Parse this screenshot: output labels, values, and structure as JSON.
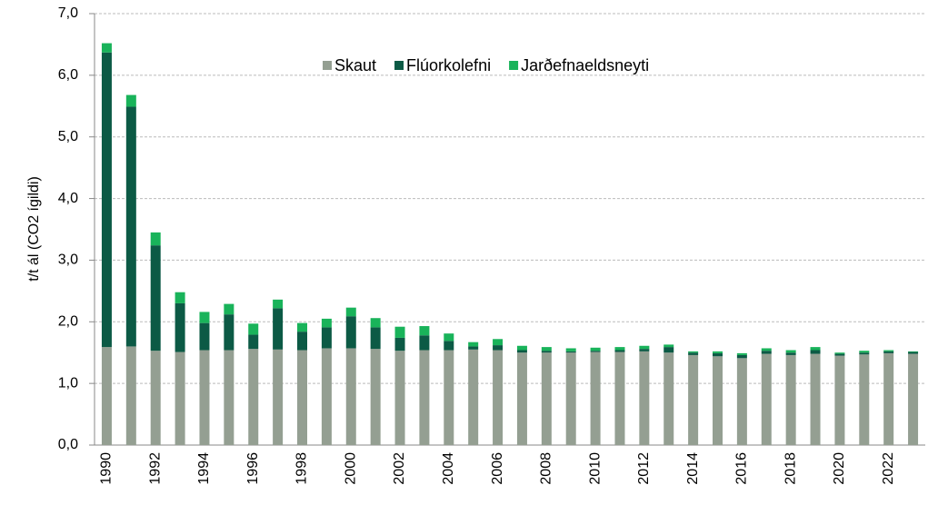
{
  "chart_data": {
    "type": "stacked_bar",
    "y_label": "t/t ál (CO2 ígildi)",
    "categories": [
      "1990",
      null,
      "1992",
      null,
      "1994",
      null,
      "1996",
      null,
      "1998",
      null,
      "2000",
      null,
      "2002",
      null,
      "2004",
      null,
      "2006",
      null,
      "2008",
      null,
      "2010",
      null,
      "2012",
      null,
      "2014",
      null,
      "2016",
      null,
      "2018",
      null,
      "2020",
      null,
      "2022",
      null
    ],
    "series": [
      {
        "name": "Skaut",
        "color": "#949f92",
        "values": [
          1.59,
          1.6,
          1.53,
          1.51,
          1.54,
          1.54,
          1.56,
          1.55,
          1.54,
          1.57,
          1.57,
          1.56,
          1.53,
          1.54,
          1.54,
          1.55,
          1.54,
          1.5,
          1.5,
          1.5,
          1.51,
          1.51,
          1.52,
          1.5,
          1.46,
          1.44,
          1.41,
          1.48,
          1.46,
          1.48,
          1.45,
          1.47,
          1.49,
          1.48
        ]
      },
      {
        "name": "Flúorkolefni",
        "color": "#0c5a45",
        "values": [
          4.78,
          3.89,
          1.71,
          0.79,
          0.44,
          0.58,
          0.23,
          0.67,
          0.3,
          0.34,
          0.52,
          0.35,
          0.21,
          0.24,
          0.15,
          0.05,
          0.08,
          0.04,
          0.03,
          0.02,
          0.02,
          0.03,
          0.04,
          0.09,
          0.04,
          0.05,
          0.05,
          0.05,
          0.04,
          0.06,
          0.03,
          0.03,
          0.03,
          0.03
        ]
      },
      {
        "name": "Jarðefnaeldsneyti",
        "color": "#19b35a",
        "values": [
          0.15,
          0.19,
          0.21,
          0.18,
          0.18,
          0.17,
          0.18,
          0.14,
          0.14,
          0.14,
          0.14,
          0.15,
          0.18,
          0.15,
          0.12,
          0.07,
          0.1,
          0.07,
          0.06,
          0.05,
          0.05,
          0.05,
          0.05,
          0.04,
          0.02,
          0.03,
          0.03,
          0.04,
          0.04,
          0.05,
          0.02,
          0.03,
          0.02,
          0.01
        ]
      }
    ],
    "ylim": [
      0,
      7
    ],
    "yticks": [
      {
        "value": 0,
        "label": "0,0"
      },
      {
        "value": 1,
        "label": "1,0"
      },
      {
        "value": 2,
        "label": "2,0"
      },
      {
        "value": 3,
        "label": "3,0"
      },
      {
        "value": 4,
        "label": "4,0"
      },
      {
        "value": 5,
        "label": "5,0"
      },
      {
        "value": 6,
        "label": "6,0"
      },
      {
        "value": 7,
        "label": "7,0"
      }
    ],
    "grid": true
  }
}
